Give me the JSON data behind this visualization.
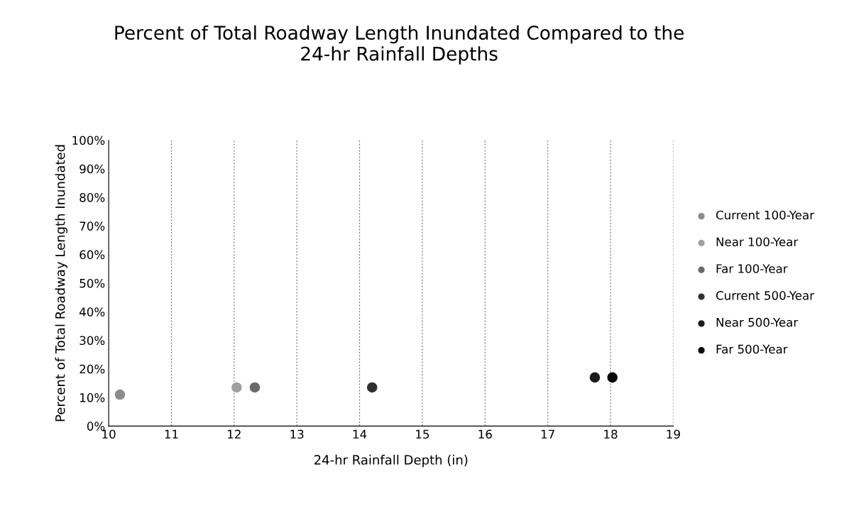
{
  "chart_data": {
    "type": "scatter",
    "title": "Percent of Total Roadway Length Inundated Compared to the\n24-hr Rainfall Depths",
    "xlabel": "24-hr Rainfall Depth (in)",
    "ylabel": "Percent of Total Roadway Length Inundated",
    "xlim": [
      10,
      19
    ],
    "xticks": [
      10,
      11,
      12,
      13,
      14,
      15,
      16,
      17,
      18,
      19
    ],
    "ylim": [
      0,
      100
    ],
    "yticks": [
      {
        "value": 0,
        "label": "0%"
      },
      {
        "value": 10,
        "label": "10%"
      },
      {
        "value": 20,
        "label": "20%"
      },
      {
        "value": 30,
        "label": "30%"
      },
      {
        "value": 40,
        "label": "40%"
      },
      {
        "value": 50,
        "label": "50%"
      },
      {
        "value": 60,
        "label": "60%"
      },
      {
        "value": 70,
        "label": "70%"
      },
      {
        "value": 80,
        "label": "80%"
      },
      {
        "value": 90,
        "label": "90%"
      },
      {
        "value": 100,
        "label": "100%"
      }
    ],
    "grid": "x",
    "legend": "right",
    "marker": "circle",
    "series": [
      {
        "name": "Current 100-Year",
        "color": "#8c8c8c",
        "x": [
          10.18
        ],
        "values": [
          11
        ]
      },
      {
        "name": "Near 100-Year",
        "color": "#a0a0a0",
        "x": [
          12.04
        ],
        "values": [
          13.5
        ]
      },
      {
        "name": "Far 100-Year",
        "color": "#6a6a6a",
        "x": [
          12.33
        ],
        "values": [
          13.5
        ]
      },
      {
        "name": "Current 500-Year",
        "color": "#303030",
        "x": [
          14.2
        ],
        "values": [
          13.5
        ]
      },
      {
        "name": "Near 500-Year",
        "color": "#1a1a1a",
        "x": [
          17.75
        ],
        "values": [
          17
        ]
      },
      {
        "name": "Far 500-Year",
        "color": "#050505",
        "x": [
          18.03
        ],
        "values": [
          17
        ]
      }
    ]
  }
}
